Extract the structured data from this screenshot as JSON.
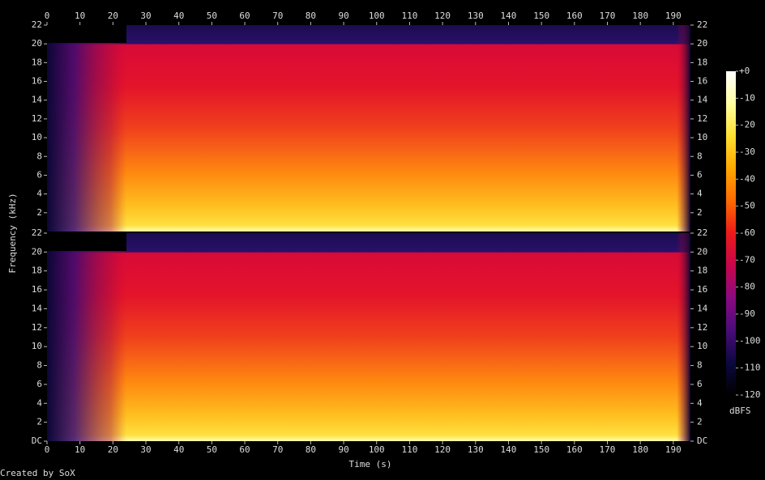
{
  "chart_data": {
    "type": "spectrogram",
    "xlabel": "Time (s)",
    "ylabel": "Frequency (kHz)",
    "xlim": [
      0,
      195.2
    ],
    "xticks": [
      0,
      10,
      20,
      30,
      40,
      50,
      60,
      70,
      80,
      90,
      100,
      110,
      120,
      130,
      140,
      150,
      160,
      170,
      180,
      190
    ],
    "channels": [
      {
        "ylim": [
          0,
          22
        ],
        "yticks": [
          2,
          4,
          6,
          8,
          10,
          12,
          14,
          16,
          18,
          20,
          22
        ]
      },
      {
        "ylim": [
          0,
          22
        ],
        "yticks": [
          {
            "value": 0,
            "label": "DC"
          },
          2,
          4,
          6,
          8,
          10,
          12,
          14,
          16,
          18,
          20,
          22
        ]
      }
    ],
    "colorbar": {
      "label": "dBFS",
      "lim": [
        -120,
        0
      ],
      "ticks": [
        {
          "value": 0,
          "label": "+0"
        },
        -10,
        -20,
        -30,
        -40,
        -50,
        -60,
        -70,
        -80,
        -90,
        -100,
        -110,
        -120
      ],
      "colormap": [
        "#000000",
        "#0c0840",
        "#4a0c7a",
        "#8a0a80",
        "#c8064c",
        "#ec1a1a",
        "#ff6a00",
        "#ffa800",
        "#ffe030",
        "#ffffa0",
        "#ffffff"
      ]
    },
    "footer": "Created by SoX"
  }
}
